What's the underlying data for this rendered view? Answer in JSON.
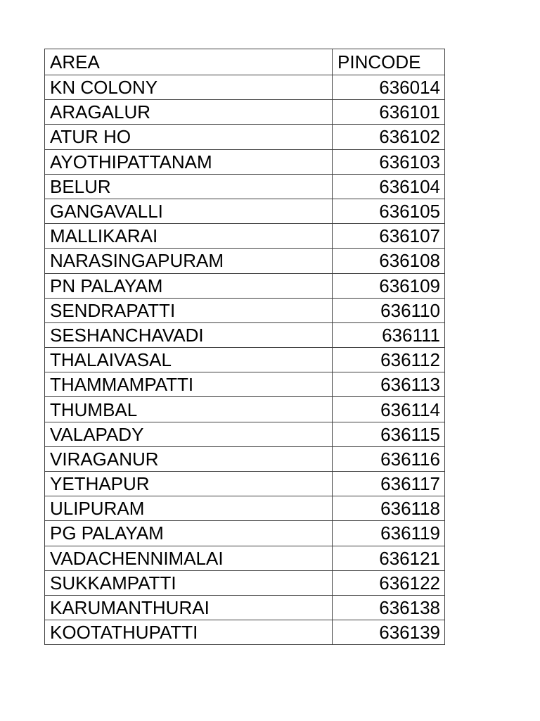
{
  "document": {
    "table": {
      "headers": [
        "AREA",
        "PINCODE"
      ],
      "rows": [
        {
          "area": "KN COLONY",
          "pincode": "636014"
        },
        {
          "area": "ARAGALUR",
          "pincode": "636101"
        },
        {
          "area": "ATUR HO",
          "pincode": "636102"
        },
        {
          "area": "AYOTHIPATTANAM",
          "pincode": "636103"
        },
        {
          "area": "BELUR",
          "pincode": "636104"
        },
        {
          "area": "GANGAVALLI",
          "pincode": "636105"
        },
        {
          "area": "MALLIKARAI",
          "pincode": "636107"
        },
        {
          "area": "NARASINGAPURAM",
          "pincode": "636108"
        },
        {
          "area": "PN PALAYAM",
          "pincode": "636109"
        },
        {
          "area": "SENDRAPATTI",
          "pincode": "636110"
        },
        {
          "area": "SESHANCHAVADI",
          "pincode": "636111"
        },
        {
          "area": "THALAIVASAL",
          "pincode": "636112"
        },
        {
          "area": "THAMMAMPATTI",
          "pincode": "636113"
        },
        {
          "area": "THUMBAL",
          "pincode": "636114"
        },
        {
          "area": "VALAPADY",
          "pincode": "636115"
        },
        {
          "area": "VIRAGANUR",
          "pincode": "636116"
        },
        {
          "area": "YETHAPUR",
          "pincode": "636117"
        },
        {
          "area": "ULIPURAM",
          "pincode": "636118"
        },
        {
          "area": "PG PALAYAM",
          "pincode": "636119"
        },
        {
          "area": "VADACHENNIMALAI",
          "pincode": "636121"
        },
        {
          "area": "SUKKAMPATTI",
          "pincode": "636122"
        },
        {
          "area": "KARUMANTHURAI",
          "pincode": "636138"
        },
        {
          "area": "KOOTATHUPATTI",
          "pincode": "636139"
        }
      ],
      "colors": {
        "border": "#3f3f3f",
        "text": "#000000",
        "background": "#ffffff"
      }
    }
  }
}
